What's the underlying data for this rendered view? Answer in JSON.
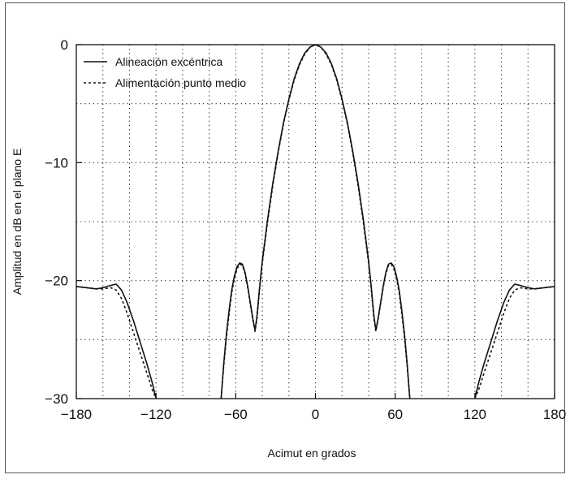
{
  "chart_data": {
    "type": "line",
    "xlabel": "Acimut en grados",
    "ylabel": "Amplitud en dB en el plano E",
    "xlim": [
      -180,
      180
    ],
    "ylim": [
      -30,
      0
    ],
    "x_ticks": [
      -180,
      -120,
      -60,
      0,
      60,
      120,
      180
    ],
    "x_tick_labels": [
      "−180",
      "−120",
      "−60",
      "0",
      "60",
      "120",
      "180"
    ],
    "y_ticks": [
      -30,
      -20,
      -10,
      0
    ],
    "y_tick_labels": [
      "−30",
      "−20",
      "−10",
      "0"
    ],
    "grid": true,
    "grid_style": "dotted",
    "legend_position": "top-left",
    "series": [
      {
        "name": "Alineación excéntrica",
        "style": "solid",
        "color": "#111111",
        "x": [
          -180,
          -172,
          -165,
          -160,
          -154,
          -150,
          -146,
          -142,
          -137,
          -132,
          -127,
          -123,
          -120,
          -71,
          -69,
          -67,
          -65,
          -63,
          -61,
          -59,
          -57,
          -55,
          -53,
          -51,
          -49,
          -47,
          -45.5,
          -44,
          -42,
          -40,
          -36,
          -32,
          -28,
          -24,
          -20,
          -16,
          -12,
          -8,
          -4,
          0,
          4,
          8,
          12,
          16,
          20,
          24,
          28,
          32,
          36,
          40,
          42,
          44,
          45.5,
          47,
          49,
          51,
          53,
          55,
          57,
          59,
          61,
          63,
          65,
          67,
          69,
          71,
          120,
          123,
          127,
          132,
          137,
          142,
          146,
          150,
          154,
          160,
          165,
          172,
          180
        ],
        "y": [
          -20.5,
          -20.6,
          -20.7,
          -20.6,
          -20.4,
          -20.3,
          -20.8,
          -21.8,
          -23.4,
          -25.2,
          -27.0,
          -28.6,
          -30,
          -30,
          -27.0,
          -24.5,
          -22.5,
          -20.8,
          -19.6,
          -18.8,
          -18.5,
          -18.6,
          -19.3,
          -20.5,
          -21.9,
          -23.3,
          -24.2,
          -23.0,
          -20.5,
          -18.3,
          -14.8,
          -11.7,
          -9.0,
          -6.6,
          -4.6,
          -2.9,
          -1.6,
          -0.7,
          -0.2,
          0,
          -0.2,
          -0.7,
          -1.6,
          -2.9,
          -4.6,
          -6.6,
          -9.0,
          -11.7,
          -14.8,
          -18.3,
          -20.5,
          -23.0,
          -24.2,
          -23.3,
          -21.9,
          -20.5,
          -19.3,
          -18.6,
          -18.5,
          -18.8,
          -19.6,
          -20.8,
          -22.5,
          -24.5,
          -27.0,
          -30,
          -30,
          -28.6,
          -27.0,
          -25.2,
          -23.4,
          -21.8,
          -20.8,
          -20.3,
          -20.4,
          -20.6,
          -20.7,
          -20.6,
          -20.5
        ]
      },
      {
        "name": "Alimentación punto medio",
        "style": "dashed",
        "color": "#111111",
        "x": [
          -180,
          -172,
          -165,
          -160,
          -154,
          -150,
          -146,
          -142,
          -137,
          -132,
          -127,
          -123,
          -120,
          -71,
          -69,
          -67,
          -65,
          -63,
          -61,
          -59,
          -57,
          -55,
          -53,
          -51,
          -49,
          -47,
          -45.5,
          -44,
          -42,
          -40,
          -36,
          -32,
          -28,
          -24,
          -20,
          -16,
          -12,
          -8,
          -4,
          0,
          4,
          8,
          12,
          16,
          20,
          24,
          28,
          32,
          36,
          40,
          42,
          44,
          45.5,
          47,
          49,
          51,
          53,
          55,
          57,
          59,
          61,
          63,
          65,
          67,
          69,
          71,
          120,
          123,
          127,
          132,
          137,
          142,
          146,
          150,
          154,
          160,
          165,
          172,
          180
        ],
        "y": [
          -20.5,
          -20.6,
          -20.7,
          -20.7,
          -20.6,
          -20.8,
          -21.5,
          -22.7,
          -24.4,
          -26.1,
          -27.8,
          -29.2,
          -30,
          -30,
          -27.2,
          -24.8,
          -22.8,
          -21.0,
          -19.8,
          -19.0,
          -18.6,
          -18.7,
          -19.4,
          -20.6,
          -22.0,
          -23.4,
          -24.3,
          -23.2,
          -20.7,
          -18.5,
          -15.0,
          -11.9,
          -9.1,
          -6.7,
          -4.7,
          -3.0,
          -1.7,
          -0.8,
          -0.2,
          0,
          -0.2,
          -0.8,
          -1.7,
          -3.0,
          -4.7,
          -6.7,
          -9.1,
          -11.9,
          -15.0,
          -18.5,
          -20.7,
          -23.2,
          -24.3,
          -23.4,
          -22.0,
          -20.6,
          -19.4,
          -18.7,
          -18.6,
          -19.0,
          -19.8,
          -21.0,
          -22.8,
          -24.8,
          -27.2,
          -30,
          -30,
          -29.2,
          -27.8,
          -26.1,
          -24.4,
          -22.7,
          -21.5,
          -20.8,
          -20.6,
          -20.7,
          -20.7,
          -20.6,
          -20.5
        ]
      }
    ]
  }
}
